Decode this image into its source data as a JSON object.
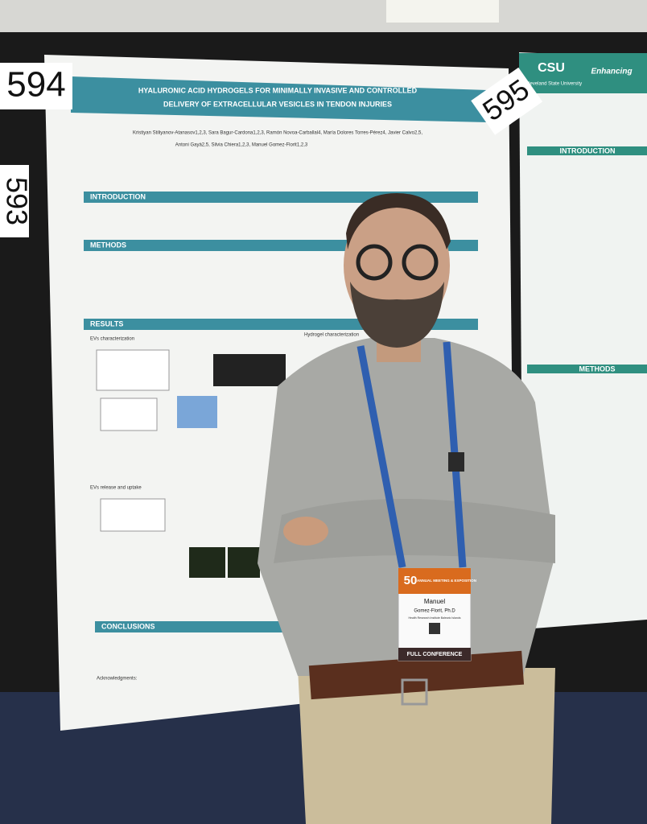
{
  "poster_numbers": {
    "left": "594",
    "left_lower": "593",
    "right": "595"
  },
  "poster": {
    "title": [
      "HYALURONIC ACID HYDROGELS FOR MINIMALLY INVASIVE AND CONTROLLED",
      "DELIVERY OF EXTRACELLULAR VESICLES IN TENDON INJURIES"
    ],
    "authors": [
      "Kristiyan Stiliyanov-Atanasov1,2,3, Sara Bagur-Cardona1,2,3, Ramón Novoa-Carballal4, María Dolores Torres-Pérez4, Javier Calvo2,5,",
      "Antoni Gayà2,5, Silvia Chiera1,2,3, Manuel Gomez-Florit1,2,3"
    ],
    "sections": {
      "introduction": "INTRODUCTION",
      "methods": "METHODS",
      "results": "RESULTS",
      "conclusions": "CONCLUSIONS"
    },
    "subsections": {
      "evs_characterization": "EVs characterization",
      "hydrogel_characterization": "Hydrogel characterization",
      "evs_release": "EVs release and uptake",
      "acknowledgments": "Acknowledgments:"
    }
  },
  "right_poster": {
    "logo": "CSU",
    "logo_sub": "Cleveland State University",
    "header": "Enhancing",
    "introduction": "INTRODUCTION",
    "methods": "METHODS"
  },
  "badge": {
    "event": "ANNUAL MEETING & EXPOSITION",
    "anniversary": "50",
    "first_name": "Manuel",
    "full_name": "Gomez-Florit, Ph.D",
    "institution": "Health Research Institute Balearic Islands",
    "type": "FULL CONFERENCE"
  }
}
